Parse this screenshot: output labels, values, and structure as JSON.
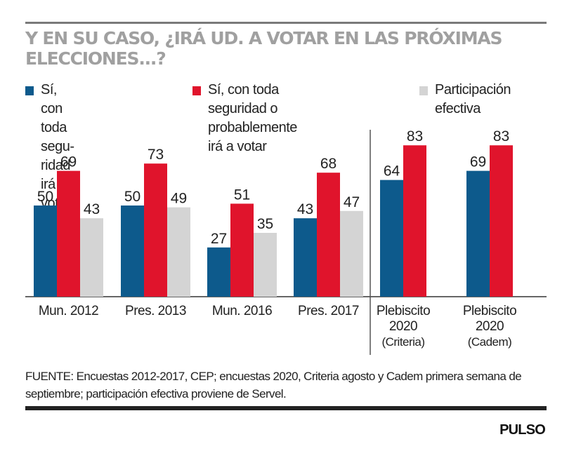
{
  "header": {
    "title": "Y EN SU CASO, ¿IRÁ UD. A VOTAR EN LAS PRÓXIMAS ELECCIONES...?"
  },
  "legend": [
    {
      "label": "Sí, con toda segu-\nridad irá a votar",
      "color": "#0d5a8c"
    },
    {
      "label": "Sí, con toda seguridad o\nprobablemente irá a votar",
      "color": "#e0142c"
    },
    {
      "label": "Participación\nefectiva",
      "color": "#d4d4d4"
    }
  ],
  "chart_data": {
    "type": "bar",
    "title": "Y EN SU CASO, ¿IRÁ UD. A VOTAR EN LAS PRÓXIMAS ELECCIONES...?",
    "xlabel": "",
    "ylabel": "",
    "ylim": [
      0,
      83
    ],
    "grid": false,
    "legend_position": "top",
    "categories": [
      [
        "Mun. 2012"
      ],
      [
        "Pres. 2013"
      ],
      [
        "Mun. 2016"
      ],
      [
        "Pres. 2017"
      ],
      [
        "Plebiscito",
        "2020",
        "(Criteria)"
      ],
      [
        "Plebiscito",
        "2020",
        "(Cadem)"
      ]
    ],
    "series": [
      {
        "name": "Sí, con toda seguridad irá a votar",
        "color": "#0d5a8c",
        "values": [
          50,
          50,
          27,
          43,
          64,
          69
        ]
      },
      {
        "name": "Sí, con toda seguridad o probablemente irá a votar",
        "color": "#e0142c",
        "values": [
          69,
          73,
          51,
          68,
          83,
          83
        ]
      },
      {
        "name": "Participación efectiva",
        "color": "#d4d4d4",
        "values": [
          43,
          49,
          35,
          47,
          null,
          null
        ]
      }
    ],
    "divider_after_category": 3
  },
  "footer": {
    "source_label": "FUENTE:",
    "source_text": " Encuestas 2012-2017, CEP; encuestas 2020, Criteria agosto y Cadem primera semana de septiembre; participación efectiva proviene de Servel.",
    "brand": "PULSO"
  }
}
